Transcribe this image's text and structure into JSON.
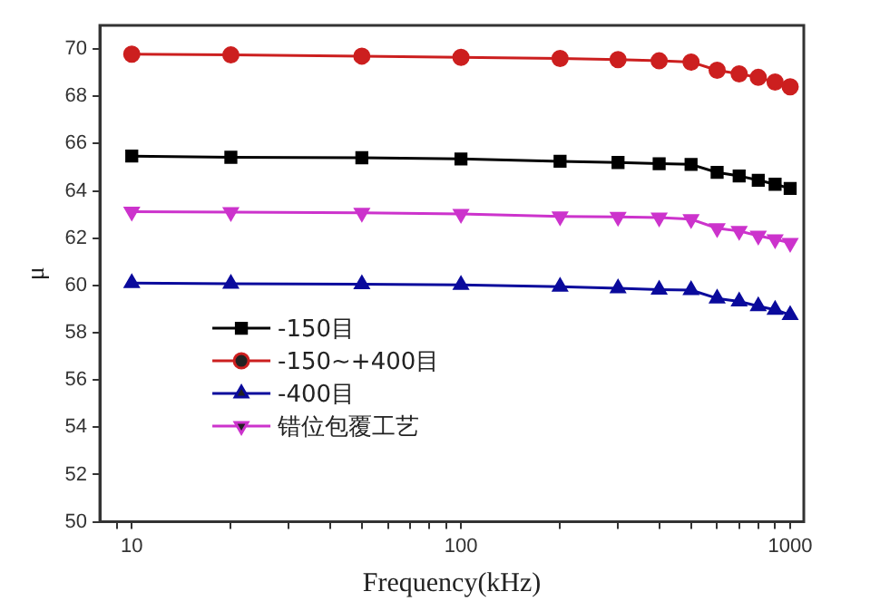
{
  "chart_data": {
    "type": "line",
    "xlabel": "Frequency(kHz)",
    "ylabel": "μ",
    "x": [
      10,
      20,
      50,
      100,
      200,
      300,
      400,
      500,
      600,
      700,
      800,
      900,
      1000
    ],
    "series": [
      {
        "name": "-150目",
        "color": "#000000",
        "marker": "square",
        "values": [
          65.47,
          65.42,
          65.4,
          65.35,
          65.25,
          65.2,
          65.15,
          65.12,
          64.78,
          64.63,
          64.45,
          64.28,
          64.1
        ]
      },
      {
        "name": "-150~+400目",
        "color": "#cc1f1f",
        "marker": "circle",
        "values": [
          69.78,
          69.75,
          69.7,
          69.65,
          69.6,
          69.55,
          69.5,
          69.45,
          69.1,
          68.95,
          68.8,
          68.6,
          68.4
        ]
      },
      {
        "name": "-400目",
        "color": "#0a0a9c",
        "marker": "triangle",
        "values": [
          60.1,
          60.07,
          60.05,
          60.02,
          59.95,
          59.88,
          59.82,
          59.8,
          59.45,
          59.32,
          59.12,
          58.97,
          58.75
        ]
      },
      {
        "name": "错位包覆工艺",
        "color": "#cc33cc",
        "marker": "triangle-down",
        "values": [
          63.12,
          63.1,
          63.07,
          63.02,
          62.92,
          62.9,
          62.87,
          62.8,
          62.42,
          62.3,
          62.1,
          61.95,
          61.8
        ]
      }
    ],
    "log": "x",
    "xlim": [
      8,
      1100
    ],
    "xticks": [
      {
        "value": 9,
        "label": null
      },
      10,
      {
        "value": 20,
        "label": null
      },
      {
        "value": 30,
        "label": null
      },
      {
        "value": 40,
        "label": null
      },
      {
        "value": 50,
        "label": null
      },
      {
        "value": 60,
        "label": null
      },
      {
        "value": 70,
        "label": null
      },
      {
        "value": 80,
        "label": null
      },
      {
        "value": 90,
        "label": null
      },
      100,
      {
        "value": 200,
        "label": null
      },
      {
        "value": 300,
        "label": null
      },
      {
        "value": 400,
        "label": null
      },
      {
        "value": 500,
        "label": null
      },
      {
        "value": 600,
        "label": null
      },
      {
        "value": 700,
        "label": null
      },
      {
        "value": 800,
        "label": null
      },
      {
        "value": 900,
        "label": null
      },
      1000
    ],
    "ylim": [
      50,
      71
    ],
    "yticks": [
      50,
      52,
      54,
      56,
      58,
      60,
      62,
      64,
      66,
      68,
      70
    ],
    "grid": false,
    "legend": "left"
  }
}
